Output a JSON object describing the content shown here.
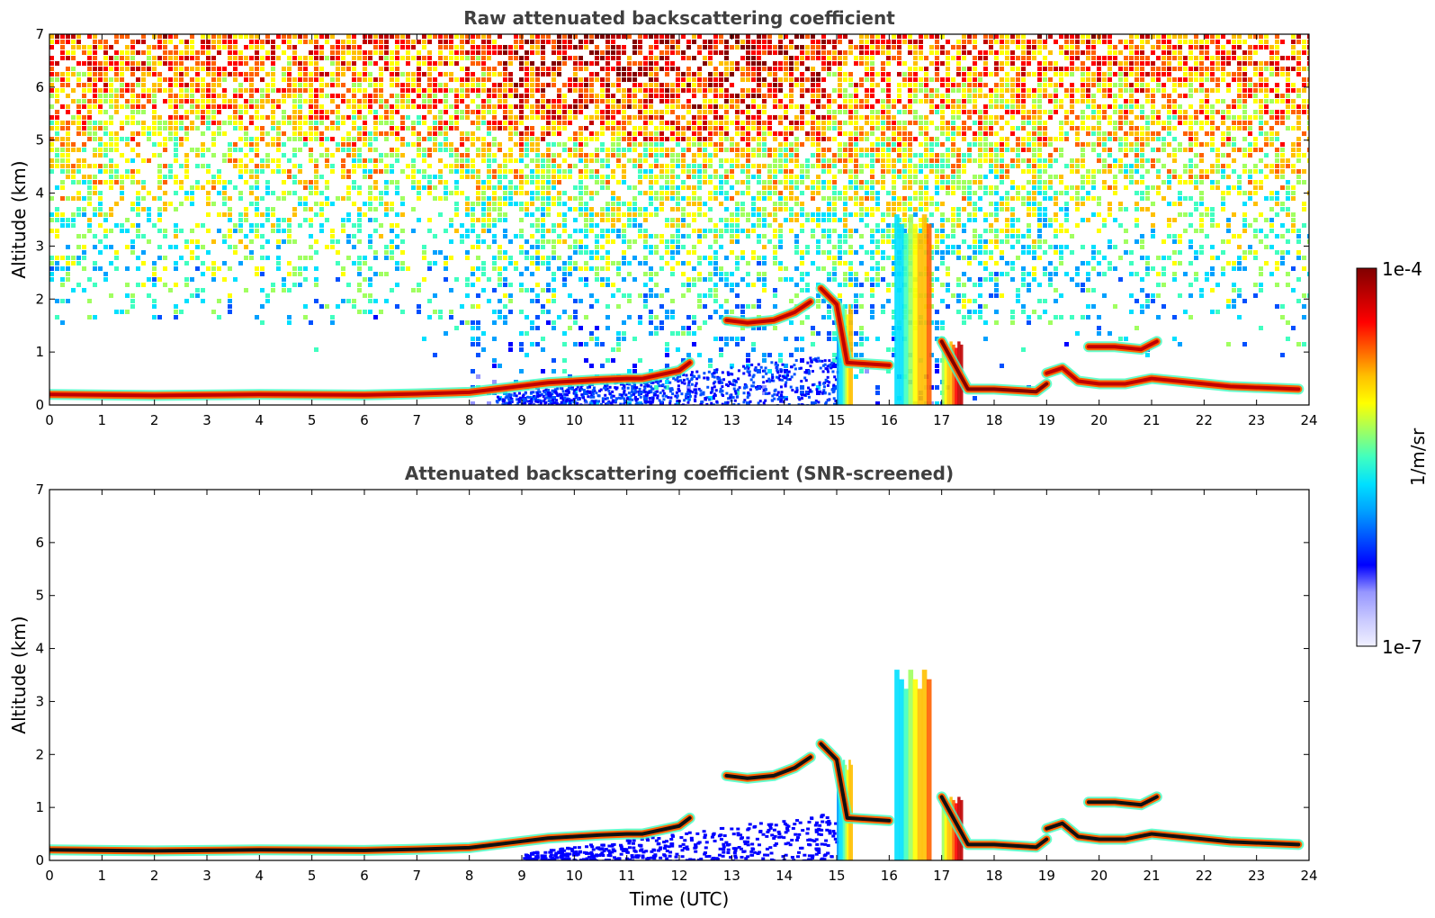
{
  "chart_data": [
    {
      "type": "heatmap",
      "title": "Raw attenuated backscattering coefficient",
      "xlabel": "",
      "ylabel": "Altitude (km)",
      "xlim": [
        0,
        24
      ],
      "ylim": [
        0,
        7
      ],
      "x_ticks": [
        0,
        1,
        2,
        3,
        4,
        5,
        6,
        7,
        8,
        9,
        10,
        11,
        12,
        13,
        14,
        15,
        16,
        17,
        18,
        19,
        20,
        21,
        22,
        23,
        24
      ],
      "y_ticks": [
        0,
        1,
        2,
        3,
        4,
        5,
        6,
        7
      ],
      "noise_field": true,
      "layers": [
        {
          "x": [
            0,
            2,
            4,
            6,
            7,
            8,
            8.5,
            9,
            9.5,
            10,
            10.5,
            11,
            11.3,
            12,
            12.2
          ],
          "y": [
            0.2,
            0.18,
            0.2,
            0.19,
            0.21,
            0.24,
            0.3,
            0.36,
            0.42,
            0.45,
            0.48,
            0.5,
            0.5,
            0.65,
            0.8
          ],
          "level": 0.95
        },
        {
          "x": [
            12.9,
            13.3,
            13.8,
            14.2,
            14.5
          ],
          "y": [
            1.6,
            1.55,
            1.6,
            1.75,
            1.95
          ],
          "level": 0.95
        },
        {
          "x": [
            14.7,
            15.0,
            15.2,
            16.0
          ],
          "y": [
            2.2,
            1.9,
            0.8,
            0.75
          ],
          "level": 0.95
        },
        {
          "x": [
            17.0,
            17.5,
            18.0,
            18.8,
            19.0
          ],
          "y": [
            1.2,
            0.3,
            0.3,
            0.25,
            0.4
          ],
          "level": 0.97
        },
        {
          "x": [
            19.0,
            19.3,
            19.6,
            20.0,
            20.5,
            21.0,
            21.5,
            22.5,
            23.8
          ],
          "y": [
            0.6,
            0.7,
            0.45,
            0.4,
            0.4,
            0.5,
            0.45,
            0.35,
            0.3
          ],
          "level": 0.95
        },
        {
          "x": [
            19.8,
            20.3,
            20.8,
            21.1
          ],
          "y": [
            1.1,
            1.1,
            1.05,
            1.2
          ],
          "level": 0.9
        }
      ],
      "columns": [
        {
          "x_start": 15.0,
          "x_end": 15.3,
          "y_top": 1.9,
          "level": 0.7
        },
        {
          "x_start": 16.1,
          "x_end": 16.8,
          "y_top": 3.6,
          "level": 0.75
        },
        {
          "x_start": 17.0,
          "x_end": 17.4,
          "y_top": 1.2,
          "level": 0.92
        }
      ]
    },
    {
      "type": "heatmap",
      "title": "Attenuated backscattering coefficient (SNR-screened)",
      "xlabel": "Time (UTC)",
      "ylabel": "Altitude (km)",
      "xlim": [
        0,
        24
      ],
      "ylim": [
        0,
        7
      ],
      "x_ticks": [
        0,
        1,
        2,
        3,
        4,
        5,
        6,
        7,
        8,
        9,
        10,
        11,
        12,
        13,
        14,
        15,
        16,
        17,
        18,
        19,
        20,
        21,
        22,
        23,
        24
      ],
      "y_ticks": [
        0,
        1,
        2,
        3,
        4,
        5,
        6,
        7
      ],
      "noise_field": false,
      "layers": [
        {
          "x": [
            0,
            2,
            4,
            6,
            7,
            8,
            8.5,
            9,
            9.5,
            10,
            10.5,
            11,
            11.3,
            12,
            12.2
          ],
          "y": [
            0.2,
            0.18,
            0.2,
            0.19,
            0.21,
            0.24,
            0.3,
            0.36,
            0.42,
            0.45,
            0.48,
            0.5,
            0.5,
            0.65,
            0.8
          ],
          "level": 0.95
        },
        {
          "x": [
            12.9,
            13.3,
            13.8,
            14.2,
            14.5
          ],
          "y": [
            1.6,
            1.55,
            1.6,
            1.75,
            1.95
          ],
          "level": 0.95
        },
        {
          "x": [
            14.7,
            15.0,
            15.2,
            16.0
          ],
          "y": [
            2.2,
            1.9,
            0.8,
            0.75
          ],
          "level": 0.95
        },
        {
          "x": [
            17.0,
            17.5,
            18.0,
            18.8,
            19.0
          ],
          "y": [
            1.2,
            0.3,
            0.3,
            0.25,
            0.4
          ],
          "level": 0.97
        },
        {
          "x": [
            19.0,
            19.3,
            19.6,
            20.0,
            20.5,
            21.0,
            21.5,
            22.5,
            23.8
          ],
          "y": [
            0.6,
            0.7,
            0.45,
            0.4,
            0.4,
            0.5,
            0.45,
            0.35,
            0.3
          ],
          "level": 0.95
        },
        {
          "x": [
            19.8,
            20.3,
            20.8,
            21.1
          ],
          "y": [
            1.1,
            1.1,
            1.05,
            1.2
          ],
          "level": 0.9
        }
      ],
      "columns": [
        {
          "x_start": 15.0,
          "x_end": 15.3,
          "y_top": 1.9,
          "level": 0.7
        },
        {
          "x_start": 16.1,
          "x_end": 16.8,
          "y_top": 3.6,
          "level": 0.75
        },
        {
          "x_start": 17.0,
          "x_end": 17.4,
          "y_top": 1.2,
          "level": 0.92
        }
      ]
    }
  ],
  "colorbar": {
    "label": "1/m/sr",
    "max_label": "1e-4",
    "min_label": "1e-7",
    "colors": [
      "#f0f0ff",
      "#c8c8ff",
      "#9696ff",
      "#0000ff",
      "#0050ff",
      "#00a0ff",
      "#00e0ff",
      "#40ffc0",
      "#a0ff60",
      "#ffff00",
      "#ffc000",
      "#ff6000",
      "#ff0000",
      "#c00000",
      "#800000"
    ]
  }
}
